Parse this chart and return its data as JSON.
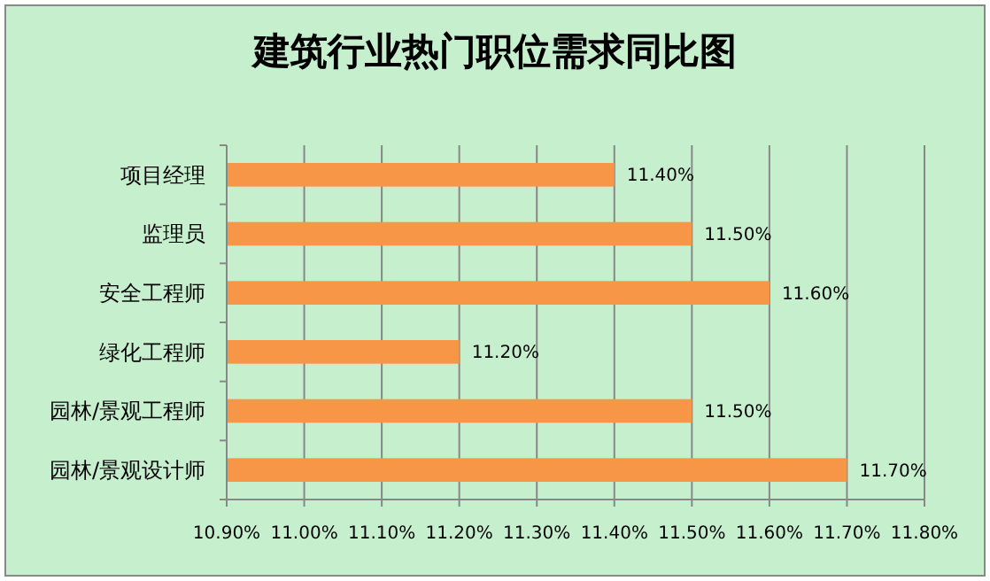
{
  "chart_data": {
    "type": "bar",
    "orientation": "horizontal",
    "title": "建筑行业热门职位需求同比图",
    "categories": [
      "项目经理",
      "监理员",
      "安全工程师",
      "绿化工程师",
      "园林/景观工程师",
      "园林/景观设计师"
    ],
    "values": [
      11.4,
      11.5,
      11.6,
      11.2,
      11.5,
      11.7
    ],
    "value_labels": [
      "11.40%",
      "11.50%",
      "11.60%",
      "11.20%",
      "11.50%",
      "11.70%"
    ],
    "color": "#f79646",
    "xlim": [
      10.9,
      11.8
    ],
    "xticks": [
      {
        "value": 10.9,
        "label": "10.90%"
      },
      {
        "value": 11.0,
        "label": "11.00%"
      },
      {
        "value": 11.1,
        "label": "11.10%"
      },
      {
        "value": 11.2,
        "label": "11.20%"
      },
      {
        "value": 11.3,
        "label": "11.30%"
      },
      {
        "value": 11.4,
        "label": "11.40%"
      },
      {
        "value": 11.5,
        "label": "11.50%"
      },
      {
        "value": 11.6,
        "label": "11.60%"
      },
      {
        "value": 11.7,
        "label": "11.70%"
      },
      {
        "value": 11.8,
        "label": "11.80%"
      }
    ],
    "grid": "x"
  }
}
